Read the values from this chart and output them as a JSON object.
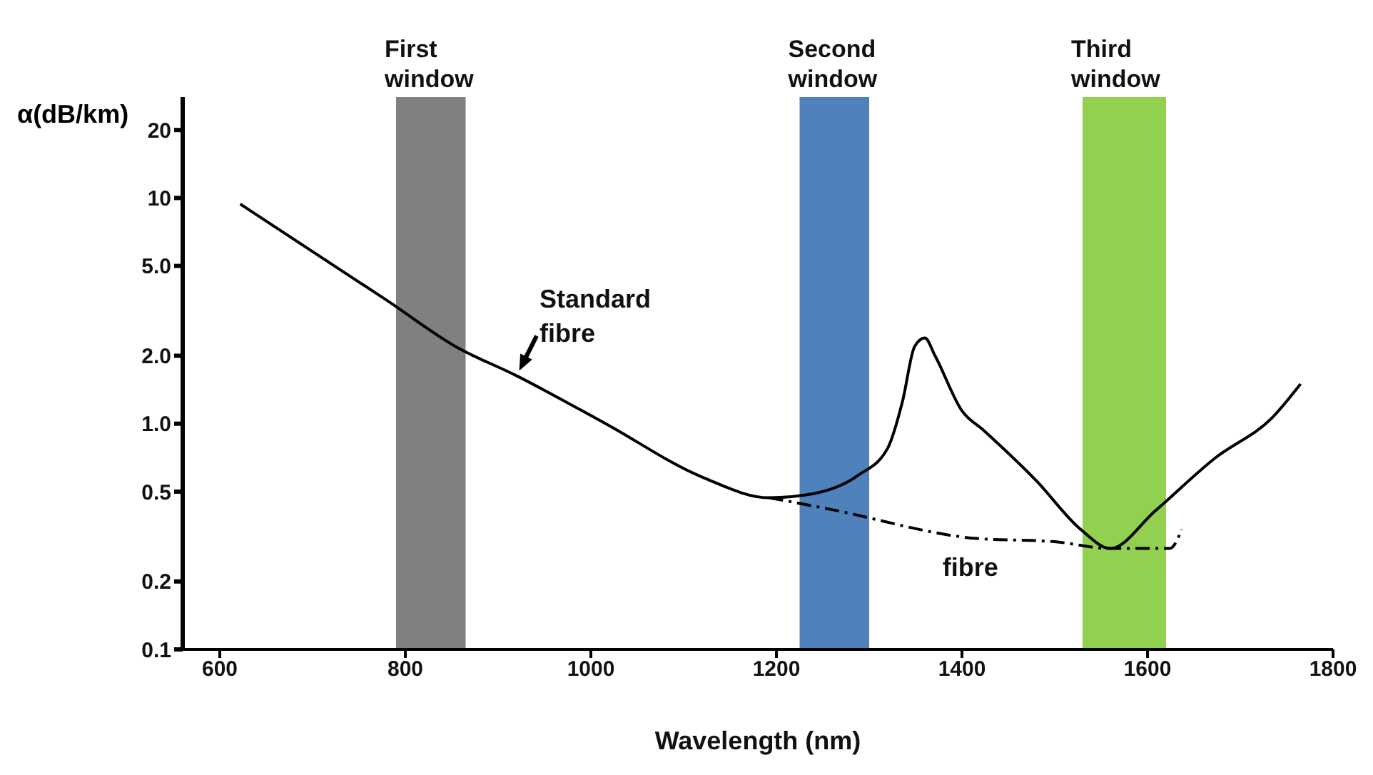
{
  "chart_data": {
    "type": "line",
    "xlabel": "Wavelength (nm)",
    "ylabel": "α(dB/km)",
    "log": "y",
    "grid": false,
    "legend": false,
    "marker": "none",
    "xlim": [
      560,
      1800
    ],
    "xticks": [
      600,
      800,
      1000,
      1200,
      1400,
      1600,
      1800
    ],
    "ylim": [
      0.1,
      28
    ],
    "yticks": [
      0.1,
      0.2,
      0.5,
      {
        "value": 1,
        "label": "1.0"
      },
      {
        "value": 2,
        "label": "2.0"
      },
      {
        "value": 5,
        "label": "5.0"
      },
      10,
      20
    ],
    "series": [
      {
        "name": "Standard fibre",
        "color": "#000000",
        "line_style": "solid",
        "x": [
          622,
          781,
          854,
          920,
          1016,
          1120,
          1192,
          1240,
          1288,
          1320,
          1336,
          1349,
          1360,
          1371,
          1400,
          1424,
          1480,
          1528,
          1560,
          1608,
          1672,
          1736,
          1765
        ],
        "values": [
          9.4,
          3.5,
          2.2,
          1.63,
          1.0,
          0.58,
          0.47,
          0.49,
          0.59,
          0.78,
          1.26,
          2.2,
          2.4,
          2.0,
          1.14,
          0.93,
          0.56,
          0.34,
          0.28,
          0.41,
          0.7,
          1.08,
          1.5
        ]
      },
      {
        "name": "fibre",
        "color": "#000000",
        "line_style": "dashed",
        "x": [
          1192,
          1255,
          1416,
          1500,
          1560,
          1624,
          1637
        ],
        "values": [
          0.47,
          0.42,
          0.31,
          0.3,
          0.28,
          0.28,
          0.34
        ]
      }
    ],
    "bands": [
      {
        "axis": "x",
        "from": 790,
        "to": 865,
        "label": "First window",
        "color": "#808080"
      },
      {
        "axis": "x",
        "from": 1225,
        "to": 1300,
        "label": "Second window",
        "color": "#4f81bd"
      },
      {
        "axis": "x",
        "from": 1530,
        "to": 1620,
        "label": "Third window",
        "color": "#92d050"
      }
    ]
  }
}
